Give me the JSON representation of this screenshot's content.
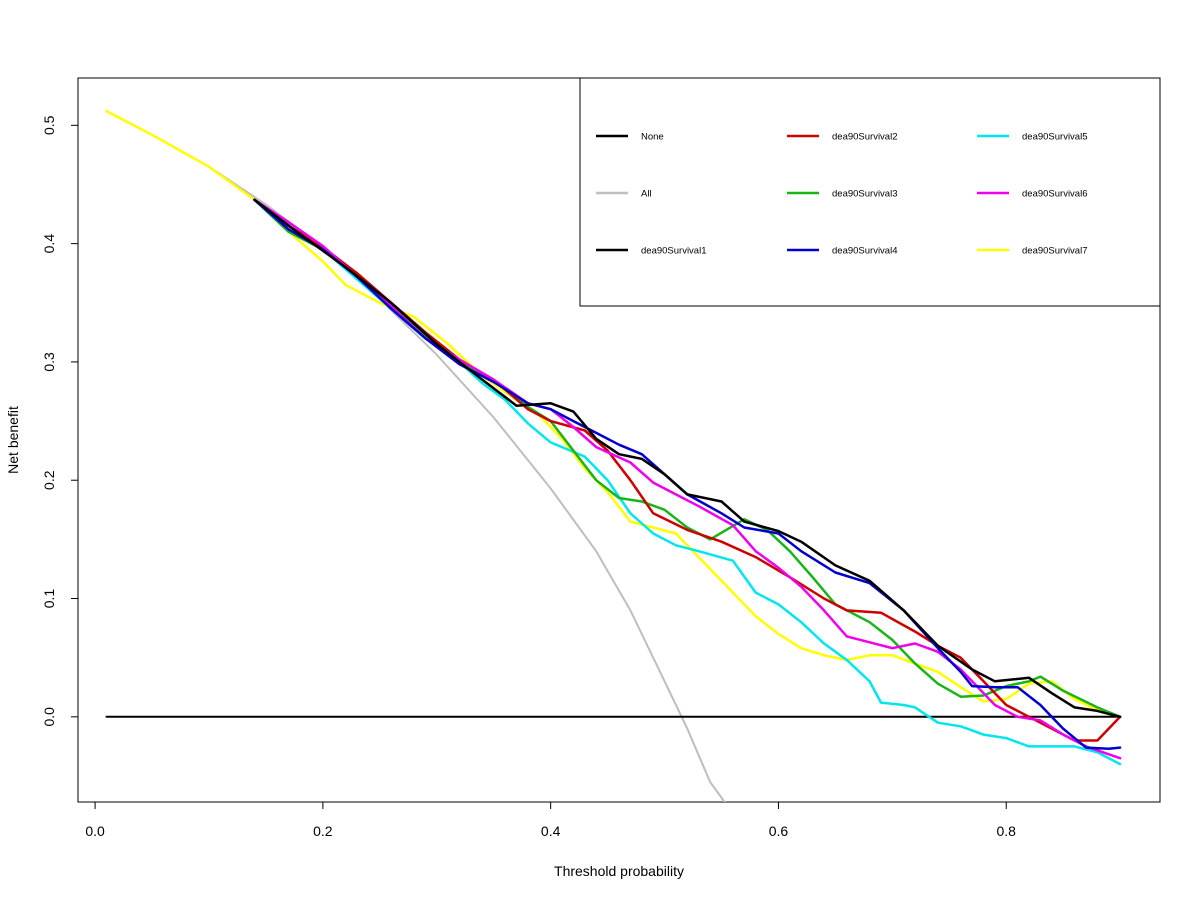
{
  "chart_data": {
    "type": "line",
    "title": "",
    "xlabel": "Threshold probability",
    "ylabel": "Net benefit",
    "xlim": [
      -0.015,
      0.935
    ],
    "ylim": [
      -0.072,
      0.54
    ],
    "xticks": [
      0.0,
      0.2,
      0.4,
      0.6,
      0.8
    ],
    "xtick_labels": [
      "0.0",
      "0.2",
      "0.4",
      "0.6",
      "0.8"
    ],
    "yticks": [
      0.0,
      0.1,
      0.2,
      0.3,
      0.4,
      0.5
    ],
    "ytick_labels": [
      "0.0",
      "0.1",
      "0.2",
      "0.3",
      "0.4",
      "0.5"
    ],
    "grid": false,
    "legend_position": "top-right",
    "legend_columns": 3,
    "series": [
      {
        "name": "None",
        "color": "#000000",
        "width": 2,
        "points": [
          [
            0.01,
            0.0
          ],
          [
            0.9,
            0.0
          ]
        ]
      },
      {
        "name": "All",
        "color": "#bebebe",
        "width": 2,
        "points": [
          [
            0.01,
            0.512
          ],
          [
            0.05,
            0.492
          ],
          [
            0.1,
            0.465
          ],
          [
            0.15,
            0.433
          ],
          [
            0.2,
            0.397
          ],
          [
            0.25,
            0.353
          ],
          [
            0.3,
            0.306
          ],
          [
            0.35,
            0.253
          ],
          [
            0.4,
            0.193
          ],
          [
            0.44,
            0.14
          ],
          [
            0.47,
            0.09
          ],
          [
            0.5,
            0.03
          ],
          [
            0.52,
            -0.01
          ],
          [
            0.54,
            -0.055
          ],
          [
            0.555,
            -0.075
          ]
        ]
      },
      {
        "name": "dea90Survival1",
        "color": "#000000",
        "width": 2.5,
        "points": [
          [
            0.14,
            0.437
          ],
          [
            0.18,
            0.408
          ],
          [
            0.22,
            0.38
          ],
          [
            0.26,
            0.35
          ],
          [
            0.3,
            0.315
          ],
          [
            0.34,
            0.285
          ],
          [
            0.37,
            0.263
          ],
          [
            0.4,
            0.265
          ],
          [
            0.42,
            0.258
          ],
          [
            0.44,
            0.235
          ],
          [
            0.46,
            0.222
          ],
          [
            0.48,
            0.218
          ],
          [
            0.5,
            0.205
          ],
          [
            0.52,
            0.188
          ],
          [
            0.55,
            0.182
          ],
          [
            0.57,
            0.165
          ],
          [
            0.6,
            0.157
          ],
          [
            0.62,
            0.148
          ],
          [
            0.65,
            0.128
          ],
          [
            0.68,
            0.115
          ],
          [
            0.71,
            0.09
          ],
          [
            0.74,
            0.06
          ],
          [
            0.77,
            0.04
          ],
          [
            0.79,
            0.03
          ],
          [
            0.82,
            0.033
          ],
          [
            0.84,
            0.02
          ],
          [
            0.86,
            0.008
          ],
          [
            0.88,
            0.005
          ],
          [
            0.9,
            0.0
          ]
        ]
      },
      {
        "name": "dea90Survival2",
        "color": "#cd0000",
        "width": 2.5,
        "points": [
          [
            0.14,
            0.437
          ],
          [
            0.17,
            0.415
          ],
          [
            0.2,
            0.397
          ],
          [
            0.23,
            0.375
          ],
          [
            0.26,
            0.35
          ],
          [
            0.29,
            0.325
          ],
          [
            0.32,
            0.302
          ],
          [
            0.35,
            0.285
          ],
          [
            0.38,
            0.26
          ],
          [
            0.4,
            0.25
          ],
          [
            0.43,
            0.242
          ],
          [
            0.45,
            0.225
          ],
          [
            0.47,
            0.2
          ],
          [
            0.49,
            0.172
          ],
          [
            0.52,
            0.158
          ],
          [
            0.55,
            0.148
          ],
          [
            0.58,
            0.135
          ],
          [
            0.61,
            0.118
          ],
          [
            0.64,
            0.1
          ],
          [
            0.66,
            0.09
          ],
          [
            0.69,
            0.088
          ],
          [
            0.72,
            0.072
          ],
          [
            0.74,
            0.06
          ],
          [
            0.76,
            0.05
          ],
          [
            0.78,
            0.03
          ],
          [
            0.8,
            0.01
          ],
          [
            0.82,
            0.0
          ],
          [
            0.84,
            -0.01
          ],
          [
            0.86,
            -0.02
          ],
          [
            0.88,
            -0.02
          ],
          [
            0.9,
            0.0
          ]
        ]
      },
      {
        "name": "dea90Survival3",
        "color": "#1ab31a",
        "width": 2.5,
        "points": [
          [
            0.14,
            0.437
          ],
          [
            0.17,
            0.41
          ],
          [
            0.2,
            0.395
          ],
          [
            0.23,
            0.375
          ],
          [
            0.26,
            0.348
          ],
          [
            0.29,
            0.322
          ],
          [
            0.32,
            0.3
          ],
          [
            0.35,
            0.285
          ],
          [
            0.38,
            0.262
          ],
          [
            0.4,
            0.25
          ],
          [
            0.42,
            0.225
          ],
          [
            0.44,
            0.2
          ],
          [
            0.46,
            0.185
          ],
          [
            0.48,
            0.182
          ],
          [
            0.5,
            0.175
          ],
          [
            0.52,
            0.16
          ],
          [
            0.54,
            0.15
          ],
          [
            0.57,
            0.167
          ],
          [
            0.59,
            0.158
          ],
          [
            0.61,
            0.14
          ],
          [
            0.63,
            0.118
          ],
          [
            0.65,
            0.095
          ],
          [
            0.68,
            0.08
          ],
          [
            0.7,
            0.065
          ],
          [
            0.72,
            0.045
          ],
          [
            0.74,
            0.028
          ],
          [
            0.76,
            0.017
          ],
          [
            0.78,
            0.018
          ],
          [
            0.8,
            0.026
          ],
          [
            0.82,
            0.03
          ],
          [
            0.83,
            0.034
          ],
          [
            0.85,
            0.022
          ],
          [
            0.88,
            0.008
          ],
          [
            0.9,
            0.0
          ]
        ]
      },
      {
        "name": "dea90Survival4",
        "color": "#0000cd",
        "width": 2.5,
        "points": [
          [
            0.14,
            0.437
          ],
          [
            0.17,
            0.412
          ],
          [
            0.2,
            0.395
          ],
          [
            0.23,
            0.372
          ],
          [
            0.26,
            0.345
          ],
          [
            0.29,
            0.32
          ],
          [
            0.32,
            0.298
          ],
          [
            0.35,
            0.283
          ],
          [
            0.38,
            0.265
          ],
          [
            0.4,
            0.26
          ],
          [
            0.42,
            0.25
          ],
          [
            0.44,
            0.24
          ],
          [
            0.46,
            0.23
          ],
          [
            0.48,
            0.222
          ],
          [
            0.5,
            0.205
          ],
          [
            0.52,
            0.188
          ],
          [
            0.55,
            0.172
          ],
          [
            0.57,
            0.16
          ],
          [
            0.6,
            0.155
          ],
          [
            0.62,
            0.14
          ],
          [
            0.65,
            0.122
          ],
          [
            0.68,
            0.113
          ],
          [
            0.71,
            0.09
          ],
          [
            0.74,
            0.058
          ],
          [
            0.76,
            0.038
          ],
          [
            0.77,
            0.026
          ],
          [
            0.79,
            0.025
          ],
          [
            0.81,
            0.025
          ],
          [
            0.83,
            0.01
          ],
          [
            0.85,
            -0.01
          ],
          [
            0.87,
            -0.026
          ],
          [
            0.89,
            -0.027
          ],
          [
            0.9,
            -0.026
          ]
        ]
      },
      {
        "name": "dea90Survival5",
        "color": "#00e5ee",
        "width": 2.5,
        "points": [
          [
            0.14,
            0.437
          ],
          [
            0.17,
            0.41
          ],
          [
            0.2,
            0.395
          ],
          [
            0.23,
            0.37
          ],
          [
            0.26,
            0.345
          ],
          [
            0.29,
            0.32
          ],
          [
            0.32,
            0.3
          ],
          [
            0.34,
            0.282
          ],
          [
            0.36,
            0.268
          ],
          [
            0.38,
            0.248
          ],
          [
            0.4,
            0.232
          ],
          [
            0.43,
            0.22
          ],
          [
            0.45,
            0.2
          ],
          [
            0.47,
            0.172
          ],
          [
            0.49,
            0.155
          ],
          [
            0.51,
            0.145
          ],
          [
            0.53,
            0.14
          ],
          [
            0.56,
            0.132
          ],
          [
            0.58,
            0.105
          ],
          [
            0.6,
            0.095
          ],
          [
            0.62,
            0.08
          ],
          [
            0.64,
            0.062
          ],
          [
            0.66,
            0.048
          ],
          [
            0.68,
            0.03
          ],
          [
            0.69,
            0.012
          ],
          [
            0.71,
            0.01
          ],
          [
            0.72,
            0.008
          ],
          [
            0.74,
            -0.005
          ],
          [
            0.76,
            -0.008
          ],
          [
            0.78,
            -0.015
          ],
          [
            0.8,
            -0.018
          ],
          [
            0.82,
            -0.025
          ],
          [
            0.84,
            -0.025
          ],
          [
            0.86,
            -0.025
          ],
          [
            0.88,
            -0.03
          ],
          [
            0.9,
            -0.04
          ]
        ]
      },
      {
        "name": "dea90Survival6",
        "color": "#ee00ee",
        "width": 2.5,
        "points": [
          [
            0.14,
            0.437
          ],
          [
            0.17,
            0.418
          ],
          [
            0.2,
            0.398
          ],
          [
            0.23,
            0.372
          ],
          [
            0.26,
            0.347
          ],
          [
            0.29,
            0.32
          ],
          [
            0.32,
            0.302
          ],
          [
            0.35,
            0.285
          ],
          [
            0.38,
            0.265
          ],
          [
            0.4,
            0.26
          ],
          [
            0.42,
            0.245
          ],
          [
            0.44,
            0.228
          ],
          [
            0.47,
            0.215
          ],
          [
            0.49,
            0.198
          ],
          [
            0.51,
            0.188
          ],
          [
            0.53,
            0.178
          ],
          [
            0.56,
            0.162
          ],
          [
            0.58,
            0.14
          ],
          [
            0.6,
            0.126
          ],
          [
            0.62,
            0.11
          ],
          [
            0.64,
            0.09
          ],
          [
            0.66,
            0.068
          ],
          [
            0.68,
            0.063
          ],
          [
            0.7,
            0.058
          ],
          [
            0.72,
            0.062
          ],
          [
            0.74,
            0.055
          ],
          [
            0.76,
            0.04
          ],
          [
            0.77,
            0.03
          ],
          [
            0.79,
            0.01
          ],
          [
            0.81,
            0.0
          ],
          [
            0.83,
            -0.003
          ],
          [
            0.85,
            -0.015
          ],
          [
            0.87,
            -0.025
          ],
          [
            0.9,
            -0.035
          ]
        ]
      },
      {
        "name": "dea90Survival7",
        "color": "#ffff00",
        "width": 2.5,
        "points": [
          [
            0.01,
            0.512
          ],
          [
            0.05,
            0.492
          ],
          [
            0.1,
            0.465
          ],
          [
            0.14,
            0.437
          ],
          [
            0.17,
            0.41
          ],
          [
            0.2,
            0.385
          ],
          [
            0.22,
            0.365
          ],
          [
            0.25,
            0.35
          ],
          [
            0.28,
            0.338
          ],
          [
            0.31,
            0.315
          ],
          [
            0.34,
            0.288
          ],
          [
            0.37,
            0.268
          ],
          [
            0.39,
            0.255
          ],
          [
            0.41,
            0.235
          ],
          [
            0.43,
            0.21
          ],
          [
            0.45,
            0.19
          ],
          [
            0.47,
            0.165
          ],
          [
            0.49,
            0.16
          ],
          [
            0.51,
            0.155
          ],
          [
            0.53,
            0.135
          ],
          [
            0.55,
            0.115
          ],
          [
            0.58,
            0.085
          ],
          [
            0.6,
            0.07
          ],
          [
            0.62,
            0.058
          ],
          [
            0.64,
            0.052
          ],
          [
            0.66,
            0.048
          ],
          [
            0.68,
            0.052
          ],
          [
            0.7,
            0.052
          ],
          [
            0.72,
            0.045
          ],
          [
            0.74,
            0.038
          ],
          [
            0.76,
            0.025
          ],
          [
            0.78,
            0.013
          ],
          [
            0.8,
            0.015
          ],
          [
            0.82,
            0.028
          ],
          [
            0.84,
            0.03
          ],
          [
            0.86,
            0.015
          ],
          [
            0.88,
            0.006
          ],
          [
            0.9,
            0.0
          ]
        ]
      }
    ]
  }
}
